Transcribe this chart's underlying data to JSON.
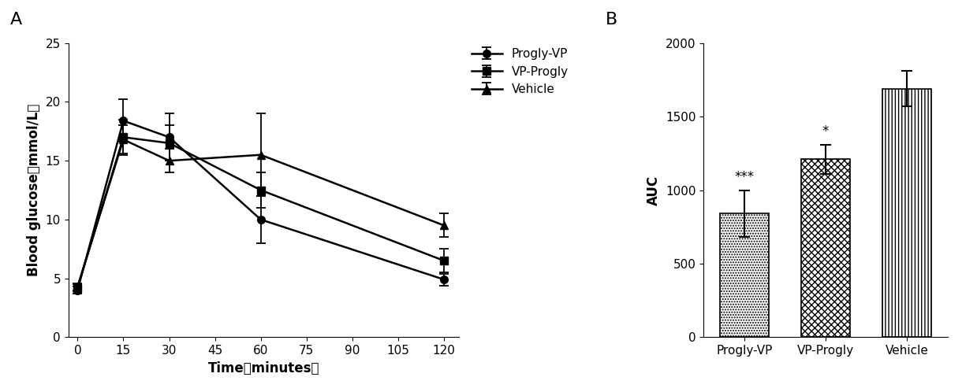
{
  "panel_A": {
    "xlabel": "Time（minutes）",
    "ylabel": "Blood glucose（mmol/L）",
    "xlim": [
      -3,
      125
    ],
    "ylim": [
      0,
      25
    ],
    "xticks": [
      0,
      15,
      30,
      45,
      60,
      75,
      90,
      105,
      120
    ],
    "yticks": [
      0,
      5,
      10,
      15,
      20,
      25
    ],
    "series": [
      {
        "label": "Progly-VP",
        "marker": "o",
        "x": [
          0,
          15,
          30,
          60,
          120
        ],
        "y": [
          4.0,
          18.4,
          17.0,
          10.0,
          4.9
        ],
        "yerr": [
          0.3,
          1.8,
          2.0,
          2.0,
          0.5
        ]
      },
      {
        "label": "VP-Progly",
        "marker": "s",
        "x": [
          0,
          15,
          30,
          60,
          120
        ],
        "y": [
          4.2,
          17.0,
          16.5,
          12.5,
          6.5
        ],
        "yerr": [
          0.3,
          1.5,
          1.5,
          1.5,
          1.0
        ]
      },
      {
        "label": "Vehicle",
        "marker": "^",
        "x": [
          0,
          15,
          30,
          60,
          120
        ],
        "y": [
          4.3,
          16.8,
          15.0,
          15.5,
          9.5
        ],
        "yerr": [
          0.3,
          1.2,
          1.0,
          3.5,
          1.0
        ]
      }
    ]
  },
  "panel_B": {
    "ylabel": "AUC",
    "ylim": [
      0,
      2000
    ],
    "yticks": [
      0,
      500,
      1000,
      1500,
      2000
    ],
    "bars": [
      {
        "label": "Progly-VP",
        "value": 840,
        "yerr": 160,
        "hatch": ".....",
        "significance": "***"
      },
      {
        "label": "VP-Progly",
        "value": 1210,
        "yerr": 100,
        "hatch": "xxxx",
        "significance": "*"
      },
      {
        "label": "Vehicle",
        "value": 1690,
        "yerr": 120,
        "hatch": "||||",
        "significance": ""
      }
    ]
  },
  "font_size": 11,
  "label_font_size": 12,
  "tick_font_size": 11,
  "legend_fontsize": 11
}
